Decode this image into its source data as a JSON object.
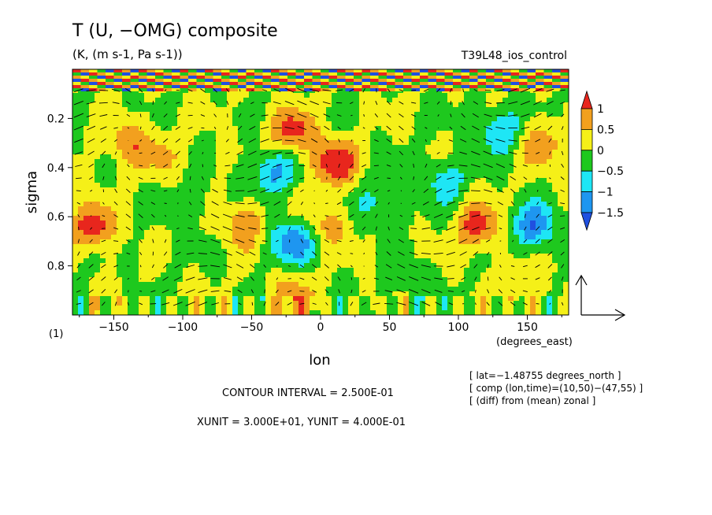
{
  "chart_data": {
    "type": "heatmap",
    "title": "T (U, −OMG) composite",
    "subtitle": "(K, (m s-1, Pa s-1))",
    "experiment": "T39L48_ios_control",
    "xlabel": "lon",
    "x_unit": "(degrees_east)",
    "ylabel": "sigma",
    "xlim": [
      -180,
      180
    ],
    "ylim": [
      1.0,
      0.0
    ],
    "x_ticks": [
      -150,
      -100,
      -50,
      0,
      50,
      100,
      150
    ],
    "x_tick_labels": [
      "−150",
      "−100",
      "−50",
      "0",
      "50",
      "100",
      "150"
    ],
    "y_ticks": [
      0.2,
      0.4,
      0.6,
      0.8
    ],
    "y_tick_labels": [
      "0.2",
      "0.4",
      "0.6",
      "0.8"
    ],
    "colorbar": {
      "ticks": [
        1,
        0.5,
        0,
        -0.5,
        -1,
        -1.5
      ],
      "tick_labels": [
        "1",
        "0.5",
        "0",
        "−0.5",
        "−1",
        "−1.5"
      ],
      "bands": [
        {
          "from": 1.0,
          "to": null,
          "color": "#e8261d"
        },
        {
          "from": 0.5,
          "to": 1.0,
          "color": "#f2a01e"
        },
        {
          "from": 0.0,
          "to": 0.5,
          "color": "#f5f018"
        },
        {
          "from": -0.5,
          "to": 0.0,
          "color": "#1ec81e"
        },
        {
          "from": -1.0,
          "to": -0.5,
          "color": "#1ee6f5"
        },
        {
          "from": -1.5,
          "to": -1.0,
          "color": "#1e96f0"
        },
        {
          "from": null,
          "to": -1.5,
          "color": "#2050e0"
        }
      ]
    },
    "anomaly_centers": [
      {
        "lon": -165,
        "sigma": 0.64,
        "amp": 1.3
      },
      {
        "lon": -140,
        "sigma": 0.3,
        "amp": 0.9
      },
      {
        "lon": -115,
        "sigma": 0.35,
        "amp": 0.5
      },
      {
        "lon": -55,
        "sigma": 0.63,
        "amp": 0.9
      },
      {
        "lon": -95,
        "sigma": 0.55,
        "amp": -0.5
      },
      {
        "lon": -35,
        "sigma": 0.42,
        "amp": -1.1
      },
      {
        "lon": -20,
        "sigma": 0.7,
        "amp": -1.4
      },
      {
        "lon": -20,
        "sigma": 0.93,
        "amp": 0.8
      },
      {
        "lon": -20,
        "sigma": 0.25,
        "amp": 1.2
      },
      {
        "lon": 10,
        "sigma": 0.38,
        "amp": 1.5
      },
      {
        "lon": 5,
        "sigma": 0.63,
        "amp": 0.7
      },
      {
        "lon": 40,
        "sigma": 0.55,
        "amp": -0.6
      },
      {
        "lon": 90,
        "sigma": 0.45,
        "amp": -0.8
      },
      {
        "lon": 115,
        "sigma": 0.64,
        "amp": 1.3
      },
      {
        "lon": 130,
        "sigma": 0.25,
        "amp": -1.0
      },
      {
        "lon": 155,
        "sigma": 0.64,
        "amp": -1.4
      },
      {
        "lon": 160,
        "sigma": 0.3,
        "amp": 0.9
      },
      {
        "lon": 60,
        "sigma": 0.85,
        "amp": -0.4
      },
      {
        "lon": 150,
        "sigma": 0.88,
        "amp": 0.5
      }
    ],
    "vector_reference": {
      "xunit": 30.0,
      "yunit": 0.4
    }
  },
  "annotations": {
    "contour_interval": "CONTOUR INTERVAL = 2.500E-01",
    "units": "XUNIT = 3.000E+01, YUNIT = 4.000E-01",
    "info_lat": "[ lat=−1.48755 degrees_north ]",
    "info_comp": "[ comp (lon,time)=(10,50)−(47,55) ]",
    "info_diff": "[ (diff) from (mean) zonal ]",
    "panel_number": "(1)"
  },
  "colors": {
    "vectors": "#000000",
    "stripe_red": "#e8261d",
    "stripe_blue": "#2050e0"
  }
}
